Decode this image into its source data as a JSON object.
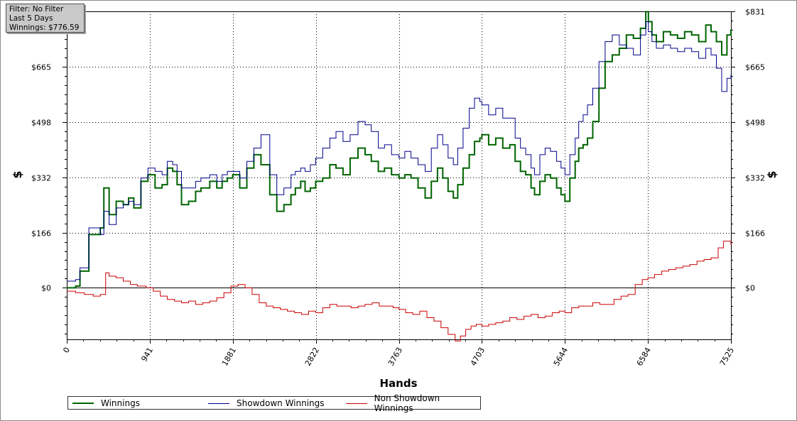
{
  "filter_box": {
    "line1": "Filter: No Filter",
    "line2": "Last 5 Days",
    "line3": "Winnings: $776.59"
  },
  "chart_data": {
    "type": "line",
    "xlabel": "Hands",
    "ylabel": "$",
    "xlim": [
      0,
      7525
    ],
    "ylim": [
      -155,
      831
    ],
    "x_ticks": [
      0,
      941,
      1881,
      2822,
      3763,
      4703,
      5644,
      6584,
      7525
    ],
    "x_tick_labels": [
      "0",
      "941",
      "1881",
      "2822",
      "3763",
      "4703",
      "5644",
      "6584",
      "7525"
    ],
    "y_ticks": [
      0,
      166,
      332,
      498,
      665,
      831
    ],
    "y_tick_labels": [
      "$0",
      "$166",
      "$332",
      "$498",
      "$665",
      "$831"
    ],
    "grid": true,
    "legend_position": "bottom",
    "series": [
      {
        "name": "Winnings",
        "color": "#006400",
        "x": [
          0,
          100,
          150,
          250,
          380,
          420,
          480,
          560,
          640,
          700,
          760,
          840,
          920,
          1000,
          1080,
          1140,
          1200,
          1250,
          1300,
          1380,
          1460,
          1520,
          1620,
          1700,
          1760,
          1820,
          1880,
          1960,
          2040,
          2120,
          2200,
          2300,
          2380,
          2460,
          2540,
          2590,
          2650,
          2700,
          2760,
          2820,
          2900,
          2980,
          3050,
          3130,
          3210,
          3300,
          3380,
          3450,
          3530,
          3600,
          3680,
          3763,
          3830,
          3900,
          3980,
          4060,
          4130,
          4200,
          4260,
          4320,
          4380,
          4430,
          4490,
          4560,
          4620,
          4680,
          4703,
          4780,
          4860,
          4940,
          5020,
          5080,
          5140,
          5200,
          5260,
          5300,
          5360,
          5420,
          5480,
          5550,
          5600,
          5644,
          5700,
          5760,
          5800,
          5850,
          5900,
          5960,
          6030,
          6100,
          6180,
          6260,
          6340,
          6420,
          6500,
          6560,
          6590,
          6630,
          6680,
          6760,
          6840,
          6920,
          7000,
          7080,
          7160,
          7240,
          7300,
          7360,
          7420,
          7480,
          7525
        ],
        "values": [
          0,
          5,
          50,
          160,
          180,
          300,
          220,
          260,
          250,
          270,
          240,
          320,
          340,
          300,
          310,
          360,
          350,
          310,
          250,
          260,
          290,
          300,
          320,
          300,
          320,
          330,
          340,
          300,
          360,
          400,
          370,
          280,
          230,
          250,
          280,
          300,
          320,
          290,
          300,
          320,
          330,
          370,
          360,
          340,
          390,
          420,
          400,
          380,
          350,
          360,
          340,
          330,
          340,
          330,
          300,
          270,
          320,
          360,
          330,
          290,
          270,
          310,
          360,
          400,
          440,
          450,
          460,
          430,
          450,
          420,
          430,
          380,
          350,
          340,
          300,
          280,
          320,
          340,
          330,
          300,
          280,
          260,
          330,
          380,
          420,
          430,
          450,
          500,
          600,
          680,
          700,
          720,
          760,
          750,
          780,
          830,
          800,
          760,
          740,
          770,
          760,
          750,
          770,
          760,
          740,
          790,
          770,
          740,
          700,
          760,
          776.59
        ]
      },
      {
        "name": "Showdown Winnings",
        "color": "#00008b",
        "x": [
          0,
          100,
          150,
          250,
          380,
          420,
          480,
          560,
          640,
          700,
          760,
          840,
          920,
          1000,
          1080,
          1140,
          1200,
          1250,
          1300,
          1380,
          1460,
          1520,
          1620,
          1700,
          1760,
          1820,
          1880,
          1960,
          2040,
          2120,
          2200,
          2300,
          2380,
          2460,
          2540,
          2590,
          2650,
          2700,
          2760,
          2820,
          2900,
          2980,
          3050,
          3130,
          3210,
          3300,
          3380,
          3450,
          3530,
          3600,
          3680,
          3763,
          3830,
          3900,
          3980,
          4060,
          4130,
          4200,
          4260,
          4320,
          4380,
          4430,
          4490,
          4560,
          4620,
          4680,
          4703,
          4780,
          4860,
          4940,
          5020,
          5080,
          5140,
          5200,
          5260,
          5300,
          5360,
          5420,
          5480,
          5550,
          5600,
          5644,
          5700,
          5760,
          5800,
          5850,
          5900,
          5960,
          6030,
          6100,
          6180,
          6260,
          6340,
          6420,
          6500,
          6560,
          6590,
          6630,
          6680,
          6760,
          6840,
          6920,
          7000,
          7080,
          7160,
          7240,
          7300,
          7360,
          7420,
          7480,
          7525
        ],
        "values": [
          20,
          25,
          60,
          180,
          160,
          230,
          190,
          240,
          250,
          260,
          250,
          330,
          360,
          350,
          340,
          380,
          370,
          350,
          300,
          300,
          320,
          330,
          340,
          320,
          340,
          350,
          350,
          330,
          380,
          420,
          460,
          340,
          280,
          300,
          340,
          350,
          360,
          350,
          370,
          390,
          420,
          450,
          470,
          440,
          460,
          500,
          490,
          470,
          420,
          430,
          400,
          390,
          410,
          390,
          370,
          350,
          420,
          460,
          430,
          390,
          370,
          420,
          480,
          540,
          570,
          560,
          550,
          520,
          540,
          510,
          510,
          450,
          420,
          400,
          360,
          340,
          400,
          420,
          410,
          380,
          360,
          340,
          400,
          450,
          500,
          520,
          550,
          600,
          680,
          740,
          760,
          730,
          720,
          700,
          760,
          800,
          770,
          740,
          720,
          730,
          720,
          710,
          720,
          710,
          690,
          720,
          700,
          660,
          590,
          630,
          640
        ]
      },
      {
        "name": "Non Showdown Winnings",
        "color": "#cc0000",
        "x": [
          0,
          100,
          200,
          300,
          380,
          440,
          480,
          560,
          640,
          720,
          800,
          900,
          980,
          1060,
          1140,
          1220,
          1300,
          1380,
          1460,
          1540,
          1620,
          1700,
          1780,
          1860,
          1940,
          2020,
          2100,
          2180,
          2260,
          2340,
          2420,
          2500,
          2580,
          2660,
          2740,
          2822,
          2900,
          2980,
          3060,
          3140,
          3220,
          3300,
          3380,
          3460,
          3540,
          3620,
          3700,
          3763,
          3840,
          3920,
          4000,
          4080,
          4160,
          4240,
          4320,
          4400,
          4460,
          4520,
          4580,
          4640,
          4703,
          4780,
          4860,
          4940,
          5020,
          5100,
          5180,
          5260,
          5340,
          5420,
          5500,
          5580,
          5644,
          5720,
          5800,
          5880,
          5960,
          6040,
          6120,
          6200,
          6280,
          6360,
          6440,
          6520,
          6584,
          6660,
          6740,
          6820,
          6900,
          6980,
          7060,
          7140,
          7220,
          7300,
          7380,
          7440,
          7480,
          7525
        ],
        "values": [
          -10,
          -15,
          -20,
          -25,
          -20,
          45,
          35,
          30,
          20,
          10,
          5,
          0,
          -10,
          -25,
          -35,
          -40,
          -45,
          -40,
          -50,
          -45,
          -40,
          -30,
          -15,
          5,
          10,
          0,
          -20,
          -45,
          -55,
          -60,
          -65,
          -70,
          -75,
          -80,
          -70,
          -75,
          -60,
          -50,
          -55,
          -55,
          -60,
          -55,
          -50,
          -45,
          -55,
          -55,
          -60,
          -65,
          -75,
          -80,
          -70,
          -90,
          -100,
          -120,
          -140,
          -160,
          -145,
          -125,
          -115,
          -110,
          -115,
          -110,
          -105,
          -100,
          -90,
          -95,
          -85,
          -80,
          -90,
          -85,
          -75,
          -70,
          -75,
          -60,
          -55,
          -55,
          -45,
          -50,
          -50,
          -35,
          -25,
          -20,
          10,
          25,
          30,
          40,
          50,
          55,
          60,
          65,
          70,
          80,
          85,
          90,
          120,
          140,
          140,
          130
        ]
      }
    ]
  }
}
